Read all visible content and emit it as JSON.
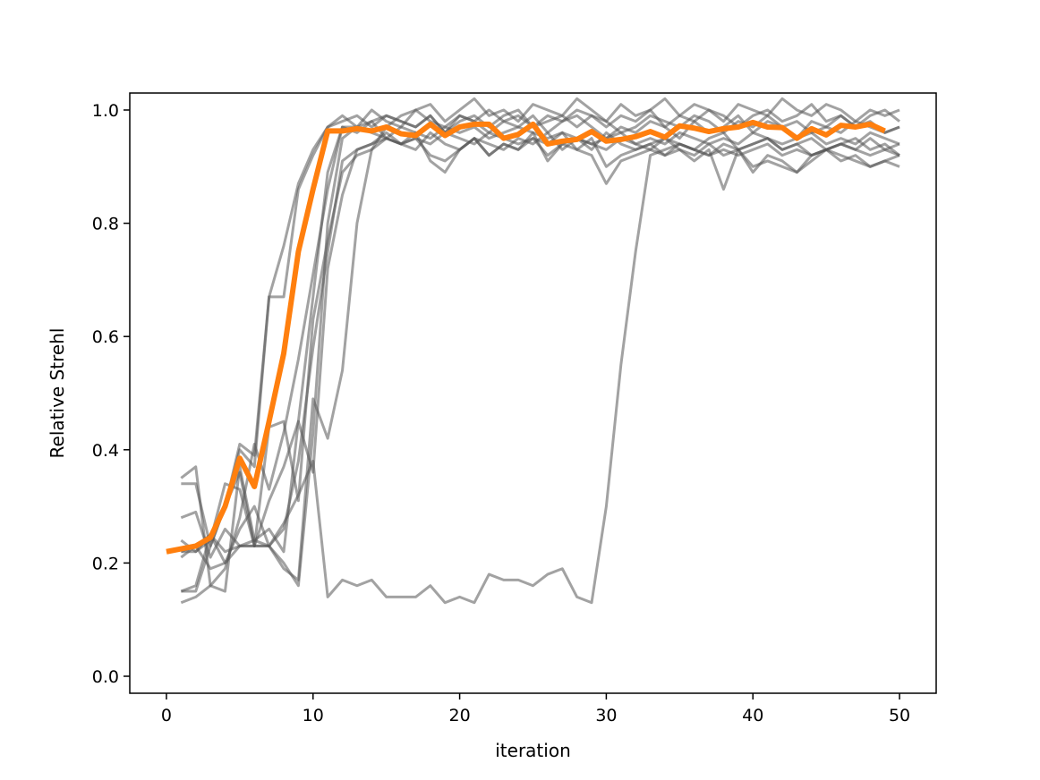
{
  "chart_data": {
    "type": "line",
    "title": "",
    "xlabel": "iteration",
    "ylabel": "Relative Strehl",
    "xlim": [
      -2.5,
      52.5
    ],
    "ylim": [
      -0.03,
      1.03
    ],
    "xticks": [
      0,
      10,
      20,
      30,
      40,
      50
    ],
    "yticks": [
      0.0,
      0.2,
      0.4,
      0.6,
      0.8,
      1.0
    ],
    "grid": false,
    "legend": "none",
    "colors": {
      "trials": "#555555",
      "mean": "#ff7f0e"
    },
    "trials_x_start": 1,
    "trials": [
      [
        0.15,
        0.16,
        0.25,
        0.3,
        0.41,
        0.39,
        0.67,
        0.76,
        0.87,
        0.93,
        0.97,
        0.98,
        0.99,
        0.97,
        0.99,
        0.98,
        0.97,
        0.99,
        0.96,
        0.99,
        0.98,
        0.96,
        0.98,
        0.97,
        0.99,
        0.96,
        0.98,
        0.99,
        0.97,
        0.95,
        0.97,
        0.96,
        0.98,
        0.97,
        0.95,
        0.98,
        0.96,
        0.97,
        0.99,
        0.96,
        0.98,
        0.97,
        0.95,
        0.98,
        0.97,
        0.96,
        0.98,
        0.97,
        0.96,
        0.97
      ],
      [
        0.34,
        0.34,
        0.23,
        0.3,
        0.4,
        0.37,
        0.67,
        0.67,
        0.86,
        0.92,
        0.97,
        0.99,
        0.97,
        1.0,
        0.98,
        0.97,
        1.0,
        0.98,
        0.97,
        0.99,
        0.98,
        1.0,
        0.98,
        0.99,
        0.97,
        0.99,
        0.98,
        1.0,
        0.99,
        0.97,
        0.99,
        0.98,
        1.0,
        0.97,
        0.99,
        0.98,
        1.0,
        0.99,
        0.97,
        0.99,
        1.0,
        0.98,
        0.99,
        1.01,
        0.98,
        0.99,
        0.97,
        0.99,
        1.0,
        0.98
      ],
      [
        0.35,
        0.37,
        0.16,
        0.15,
        0.37,
        0.24,
        0.26,
        0.22,
        0.45,
        0.36,
        0.72,
        0.85,
        0.93,
        0.94,
        0.96,
        0.94,
        0.93,
        0.96,
        0.94,
        0.93,
        0.95,
        0.94,
        0.93,
        0.95,
        0.94,
        0.96,
        0.93,
        0.95,
        0.94,
        0.93,
        0.95,
        0.94,
        0.93,
        0.95,
        0.94,
        0.93,
        0.95,
        0.96,
        0.93,
        0.94,
        0.95,
        0.93,
        0.94,
        0.95,
        0.93,
        0.94,
        0.95,
        0.93,
        0.94,
        0.92
      ],
      [
        0.28,
        0.29,
        0.21,
        0.26,
        0.23,
        0.23,
        0.44,
        0.45,
        0.31,
        0.63,
        0.77,
        0.89,
        0.92,
        0.93,
        0.95,
        0.94,
        0.95,
        0.94,
        0.96,
        0.95,
        0.94,
        0.96,
        0.95,
        0.94,
        0.95,
        0.94,
        0.96,
        0.95,
        0.94,
        0.95,
        0.96,
        0.94,
        0.95,
        0.94,
        0.96,
        0.95,
        0.94,
        0.95,
        0.94,
        0.96,
        0.95,
        0.94,
        0.95,
        0.96,
        0.94,
        0.95,
        0.94,
        0.96,
        0.95,
        0.94
      ],
      [
        0.21,
        0.23,
        0.25,
        0.2,
        0.23,
        0.23,
        0.23,
        0.19,
        0.17,
        0.49,
        0.42,
        0.54,
        0.8,
        0.93,
        0.97,
        0.99,
        1.0,
        1.01,
        0.98,
        1.0,
        1.02,
        0.99,
        1.0,
        0.98,
        1.01,
        1.0,
        0.99,
        1.02,
        1.0,
        0.98,
        1.01,
        0.99,
        1.0,
        1.02,
        0.99,
        1.01,
        1.0,
        0.98,
        1.01,
        1.0,
        0.99,
        1.02,
        1.0,
        0.99,
        1.01,
        1.0,
        0.98,
        1.0,
        0.99,
        1.0
      ],
      [
        0.24,
        0.22,
        0.24,
        0.34,
        0.33,
        0.23,
        0.23,
        0.26,
        0.38,
        0.58,
        0.75,
        0.91,
        0.93,
        0.94,
        0.95,
        0.94,
        0.95,
        0.92,
        0.91,
        0.93,
        0.95,
        0.92,
        0.94,
        0.93,
        0.96,
        0.91,
        0.94,
        0.93,
        0.95,
        0.9,
        0.92,
        0.93,
        0.94,
        0.92,
        0.93,
        0.91,
        0.93,
        0.86,
        0.93,
        0.89,
        0.92,
        0.91,
        0.89,
        0.92,
        0.93,
        0.91,
        0.92,
        0.9,
        0.91,
        0.92
      ],
      [
        0.15,
        0.15,
        0.23,
        0.3,
        0.36,
        0.23,
        0.31,
        0.37,
        0.45,
        0.67,
        0.89,
        0.97,
        0.96,
        0.98,
        0.95,
        0.94,
        0.96,
        0.91,
        0.89,
        0.93,
        0.95,
        0.92,
        0.94,
        0.93,
        0.95,
        0.92,
        0.94,
        0.95,
        0.93,
        0.96,
        0.94,
        0.93,
        0.94,
        0.95,
        0.93,
        0.92,
        0.94,
        0.92,
        0.93,
        0.9,
        0.91,
        0.9,
        0.89,
        0.91,
        0.93,
        0.92,
        0.91,
        0.9,
        0.91,
        0.9
      ],
      [
        0.22,
        0.22,
        0.25,
        0.22,
        0.23,
        0.24,
        0.23,
        0.2,
        0.16,
        0.43,
        0.8,
        0.95,
        0.97,
        0.98,
        0.99,
        0.98,
        0.97,
        0.99,
        0.96,
        0.98,
        0.99,
        0.97,
        0.99,
        1.0,
        0.97,
        0.98,
        0.99,
        0.97,
        0.99,
        0.98,
        0.96,
        0.97,
        0.99,
        0.98,
        0.97,
        0.99,
        0.98,
        0.96,
        0.98,
        0.97,
        0.99,
        0.97,
        0.98,
        0.96,
        0.97,
        0.99,
        0.97,
        0.98,
        0.96,
        0.97
      ],
      [
        0.22,
        0.23,
        0.19,
        0.2,
        0.26,
        0.3,
        0.23,
        0.27,
        0.32,
        0.38,
        0.14,
        0.17,
        0.16,
        0.17,
        0.14,
        0.14,
        0.14,
        0.16,
        0.13,
        0.14,
        0.13,
        0.18,
        0.17,
        0.17,
        0.16,
        0.18,
        0.19,
        0.14,
        0.13,
        0.3,
        0.55,
        0.75,
        0.92,
        0.93,
        0.94,
        0.93,
        0.92,
        0.94,
        0.93,
        0.94,
        0.95,
        0.93,
        0.94,
        0.92,
        0.93,
        0.94,
        0.93,
        0.95,
        0.93,
        0.94
      ],
      [
        0.13,
        0.14,
        0.16,
        0.19,
        0.28,
        0.41,
        0.33,
        0.43,
        0.56,
        0.71,
        0.86,
        0.97,
        0.97,
        0.96,
        0.95,
        0.97,
        0.96,
        0.95,
        0.97,
        0.96,
        0.97,
        0.95,
        0.96,
        0.97,
        0.96,
        0.95,
        0.96,
        0.93,
        0.92,
        0.87,
        0.91,
        0.92,
        0.93,
        0.92,
        0.94,
        0.93,
        0.92,
        0.93,
        0.92,
        0.93,
        0.94,
        0.92,
        0.93,
        0.92,
        0.93,
        0.94,
        0.93,
        0.92,
        0.93,
        0.92
      ]
    ],
    "mean_x_start": 0,
    "mean": [
      0.22,
      0.225,
      0.23,
      0.245,
      0.3,
      0.385,
      0.335,
      0.45,
      0.57,
      0.75,
      0.86,
      0.963,
      0.963,
      0.967,
      0.963,
      0.97,
      0.958,
      0.955,
      0.975,
      0.955,
      0.97,
      0.975,
      0.975,
      0.95,
      0.957,
      0.975,
      0.94,
      0.945,
      0.948,
      0.962,
      0.945,
      0.948,
      0.953,
      0.962,
      0.952,
      0.972,
      0.968,
      0.962,
      0.967,
      0.97,
      0.978,
      0.97,
      0.969,
      0.95,
      0.967,
      0.956,
      0.973,
      0.97,
      0.975,
      0.963
    ]
  }
}
